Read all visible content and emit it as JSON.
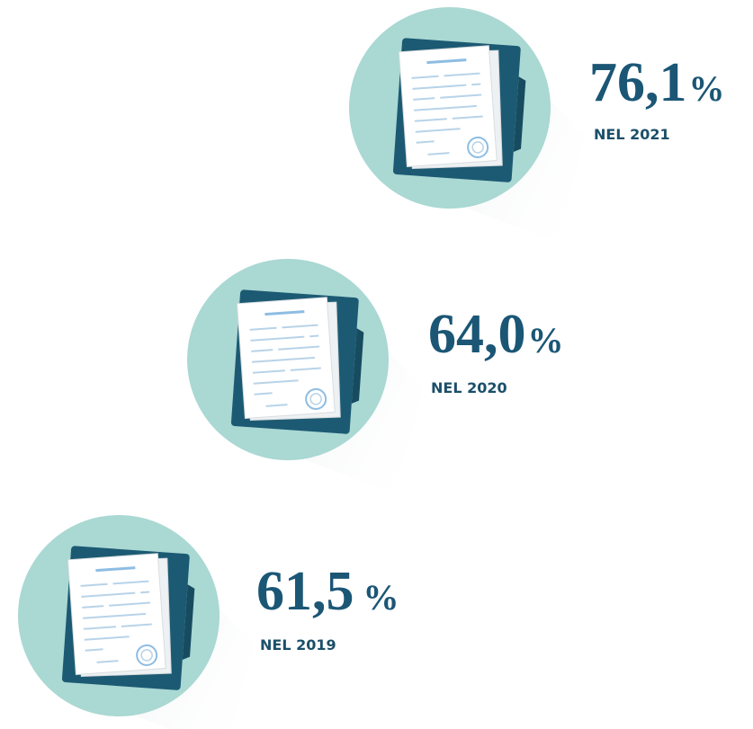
{
  "items": [
    {
      "value": "76,1",
      "unit": "%",
      "label": "NEL 2021"
    },
    {
      "value": "64,0",
      "unit": "%",
      "label": "NEL 2020"
    },
    {
      "value": "61,5",
      "unit": "%",
      "label": "NEL 2019"
    }
  ]
}
